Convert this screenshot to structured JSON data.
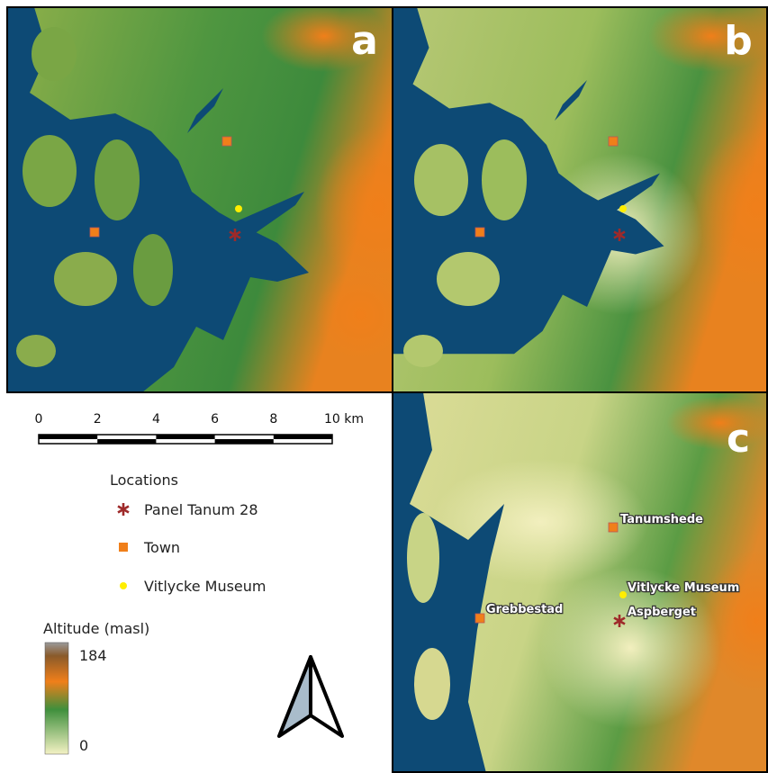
{
  "panels": [
    {
      "letter": "a"
    },
    {
      "letter": "b"
    },
    {
      "letter": "c",
      "labels": [
        "Tanumshede",
        "Vitlycke Museum",
        "Aspberget",
        "Grebbestad"
      ]
    }
  ],
  "scale_bar": {
    "ticks": [
      "0",
      "2",
      "4",
      "6",
      "8",
      "10 km"
    ]
  },
  "legend": {
    "title": "Locations",
    "items": [
      "Panel Tanum 28",
      "Town",
      "Vitlycke Museum"
    ]
  },
  "altitude": {
    "title": "Altitude (masl)",
    "max": 184,
    "min": 0
  }
}
